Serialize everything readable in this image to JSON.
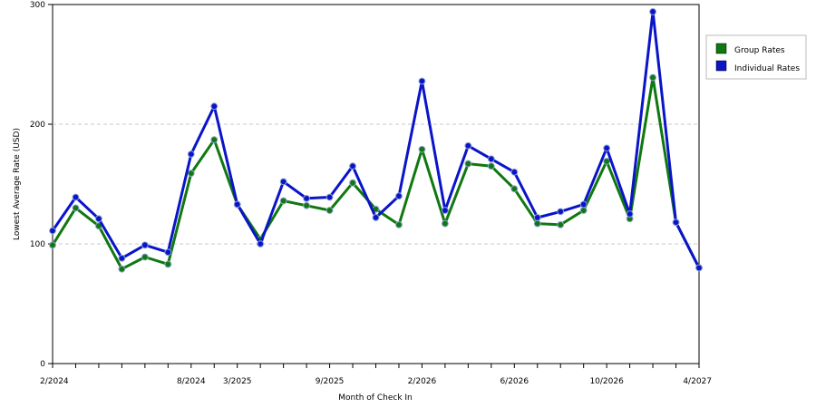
{
  "chart_data": {
    "type": "line",
    "title": "",
    "xlabel": "Month of Check In",
    "ylabel": "Lowest Average Rate (USD)",
    "ylim": [
      0,
      300
    ],
    "yticks": [
      0,
      100,
      200,
      300
    ],
    "grid": "horizontal-dashed",
    "legend_position": "top-right",
    "x_tick_labels": [
      {
        "index": 0,
        "label": "2/2024"
      },
      {
        "index": 6,
        "label": "8/2024"
      },
      {
        "index": 8,
        "label": "3/2025"
      },
      {
        "index": 12,
        "label": "9/2025"
      },
      {
        "index": 16,
        "label": "2/2026"
      },
      {
        "index": 20,
        "label": "6/2026"
      },
      {
        "index": 24,
        "label": "10/2026"
      },
      {
        "index": 28,
        "label": "4/2027"
      }
    ],
    "series": [
      {
        "name": "Group Rates",
        "color": "#107810",
        "values": [
          99,
          130,
          115,
          79,
          89,
          83,
          159,
          187,
          133,
          104,
          136,
          132,
          128,
          151,
          129,
          116,
          179,
          117,
          167,
          165,
          146,
          117,
          116,
          128,
          169,
          121,
          239,
          118,
          80
        ]
      },
      {
        "name": "Individual Rates",
        "color": "#0a14c8",
        "values": [
          111,
          139,
          121,
          88,
          99,
          93,
          175,
          215,
          133,
          100,
          152,
          138,
          139,
          165,
          122,
          140,
          236,
          128,
          182,
          171,
          160,
          122,
          127,
          133,
          180,
          125,
          294,
          118,
          80
        ]
      }
    ]
  }
}
